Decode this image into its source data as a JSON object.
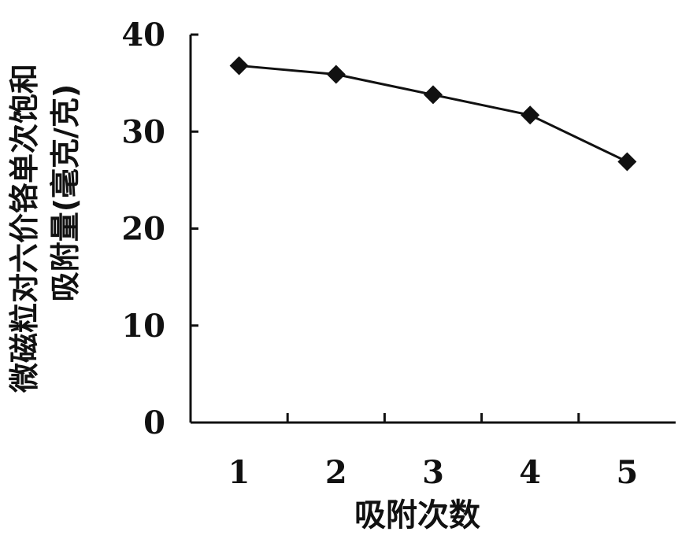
{
  "chart_data": {
    "type": "line",
    "title": "",
    "xlabel": "吸附次数",
    "ylabel_lines": [
      "微磁粒对六价铬单次饱和",
      "吸附量(毫克/克)"
    ],
    "x": [
      1,
      2,
      3,
      4,
      5
    ],
    "series": [
      {
        "values": [
          36.8,
          35.9,
          33.8,
          31.7,
          26.9
        ],
        "marker": "diamond",
        "color": "#111111"
      }
    ],
    "xticks": [
      "1",
      "2",
      "3",
      "4",
      "5"
    ],
    "yticks": [
      "0",
      "10",
      "20",
      "30",
      "40"
    ],
    "ylim": [
      0,
      40
    ],
    "xlim": [
      0.5,
      5.5
    ],
    "grid": false,
    "legend": "none"
  }
}
